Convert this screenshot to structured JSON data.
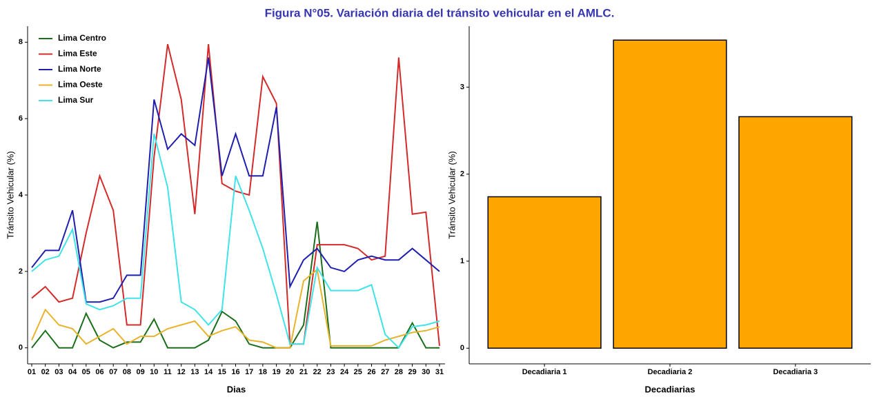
{
  "title": "Figura N°05. Variación diaria del tránsito vehicular en el AMLC.",
  "chart_data": [
    {
      "type": "line",
      "x_label": "Dias",
      "y_label": "Tránsito Vehicular (%)",
      "categories": [
        "01",
        "02",
        "03",
        "04",
        "05",
        "06",
        "07",
        "08",
        "09",
        "10",
        "11",
        "12",
        "13",
        "14",
        "15",
        "16",
        "17",
        "18",
        "19",
        "20",
        "21",
        "22",
        "23",
        "24",
        "25",
        "26",
        "27",
        "28",
        "29",
        "30",
        "31"
      ],
      "ylim": [
        -0.42,
        8.42
      ],
      "yticks": [
        0,
        2,
        4,
        6,
        8
      ],
      "grid": false,
      "legend": "top-left",
      "series": [
        {
          "name": "Lima Centro",
          "color": "#1a6e1a",
          "values": [
            0,
            0.45,
            0,
            0,
            0.9,
            0.2,
            0,
            0.15,
            0.15,
            0.75,
            0,
            0,
            0,
            0.2,
            0.95,
            0.7,
            0.1,
            0,
            0,
            0,
            0.6,
            3.3,
            0,
            0,
            0,
            0,
            0,
            0,
            0.65,
            0,
            0
          ]
        },
        {
          "name": "Lima Este",
          "color": "#d42a2a",
          "values": [
            1.3,
            1.6,
            1.2,
            1.3,
            3.0,
            4.5,
            3.6,
            0.6,
            0.6,
            5.0,
            7.95,
            6.5,
            3.5,
            7.95,
            4.3,
            4.1,
            4.0,
            7.1,
            6.4,
            0.1,
            0.1,
            2.7,
            2.7,
            2.7,
            2.6,
            2.3,
            2.4,
            7.6,
            3.5,
            3.55,
            0.05
          ]
        },
        {
          "name": "Lima Norte",
          "color": "#1f1fae",
          "values": [
            2.1,
            2.55,
            2.55,
            3.6,
            1.2,
            1.2,
            1.3,
            1.9,
            1.9,
            6.5,
            5.2,
            5.6,
            5.3,
            7.6,
            4.5,
            5.6,
            4.5,
            4.5,
            6.3,
            1.6,
            2.3,
            2.6,
            2.1,
            2.0,
            2.3,
            2.4,
            2.3,
            2.3,
            2.6,
            2.3,
            2.0
          ]
        },
        {
          "name": "Lima Oeste",
          "color": "#e8b32a",
          "values": [
            0.2,
            1.0,
            0.6,
            0.5,
            0.1,
            0.3,
            0.5,
            0.1,
            0.3,
            0.3,
            0.5,
            0.6,
            0.7,
            0.3,
            0.45,
            0.55,
            0.2,
            0.15,
            0,
            0,
            1.75,
            2.05,
            0.05,
            0.05,
            0.05,
            0.05,
            0.2,
            0.3,
            0.4,
            0.45,
            0.55
          ]
        },
        {
          "name": "Lima Sur",
          "color": "#3fe3e8",
          "values": [
            2.0,
            2.3,
            2.4,
            3.1,
            1.15,
            1.0,
            1.1,
            1.3,
            1.3,
            5.6,
            4.2,
            1.2,
            1.0,
            0.6,
            1.0,
            4.5,
            3.6,
            2.6,
            1.4,
            0.1,
            0.1,
            2.1,
            1.5,
            1.5,
            1.5,
            1.65,
            0.35,
            0,
            0.55,
            0.6,
            0.7
          ]
        }
      ]
    },
    {
      "type": "bar",
      "x_label": "Decadiarias",
      "y_label": "Tránsito Vehicular (%)",
      "categories": [
        "Decadiaria 1",
        "Decadiaria 2",
        "Decadiaria 3"
      ],
      "values": [
        1.74,
        3.54,
        2.66
      ],
      "color": "#ffa500",
      "edge_color": "#000000",
      "ylim": [
        -0.18,
        3.7
      ],
      "yticks": [
        0,
        1,
        2,
        3
      ],
      "grid": false
    }
  ]
}
